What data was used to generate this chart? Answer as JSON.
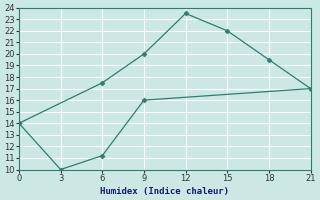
{
  "xlabel": "Humidex (Indice chaleur)",
  "upper_x": [
    0,
    6,
    9,
    12,
    15,
    18,
    21
  ],
  "upper_y": [
    14,
    17.5,
    20,
    23.5,
    22,
    19.5,
    17
  ],
  "lower_x": [
    0,
    3,
    6,
    9,
    21
  ],
  "lower_y": [
    14,
    10,
    11.2,
    16,
    17
  ],
  "line_color": "#2e7d72",
  "marker_color": "#2e7d72",
  "bg_color": "#cce8e4",
  "grid_color": "#b0d8d4",
  "xlim": [
    0,
    21
  ],
  "ylim": [
    10,
    24
  ],
  "xticks": [
    0,
    3,
    6,
    9,
    12,
    15,
    18,
    21
  ],
  "yticks": [
    10,
    11,
    12,
    13,
    14,
    15,
    16,
    17,
    18,
    19,
    20,
    21,
    22,
    23,
    24
  ]
}
